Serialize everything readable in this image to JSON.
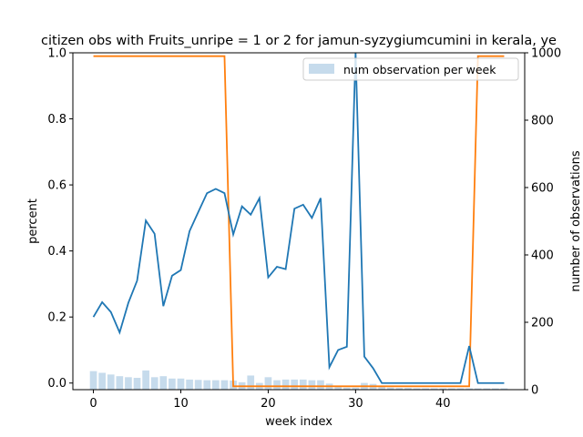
{
  "chart_data": {
    "type": "line",
    "title": "citizen obs with Fruits_unripe = 1 or 2 for jamun-syzygiumcumini in kerala, ye",
    "xlabel": "week index",
    "ylabel": "percent",
    "ylabel_right": "number of observations",
    "xlim": [
      -2.35,
      49.35
    ],
    "ylim": [
      -0.02,
      1.0
    ],
    "ylim_right": [
      0,
      1000
    ],
    "xticks": [
      0,
      10,
      20,
      30,
      40
    ],
    "yticks": [
      0.0,
      0.2,
      0.4,
      0.6,
      0.8,
      1.0
    ],
    "yticks_right": [
      0,
      200,
      400,
      600,
      800,
      1000
    ],
    "legend": {
      "label": "num observation per week",
      "position": "top-right"
    },
    "colors": {
      "percent": "#1f77b4",
      "threshold": "#ff7f0e",
      "bars": "#c6dbec"
    },
    "x": [
      0,
      1,
      2,
      3,
      4,
      5,
      6,
      7,
      8,
      9,
      10,
      11,
      12,
      13,
      14,
      15,
      16,
      17,
      18,
      19,
      20,
      21,
      22,
      23,
      24,
      25,
      26,
      27,
      28,
      29,
      30,
      31,
      32,
      33,
      34,
      35,
      36,
      37,
      38,
      39,
      40,
      41,
      42,
      43,
      44,
      45,
      46,
      47
    ],
    "series": [
      {
        "role": "percent",
        "axis": "left",
        "values": [
          0.2,
          0.245,
          0.215,
          0.153,
          0.243,
          0.31,
          0.492,
          0.452,
          0.233,
          0.325,
          0.342,
          0.46,
          0.518,
          0.575,
          0.588,
          0.575,
          0.45,
          0.535,
          0.51,
          0.56,
          0.32,
          0.352,
          0.345,
          0.528,
          0.54,
          0.5,
          0.56,
          0.048,
          0.1,
          0.11,
          1.0,
          0.08,
          0.045,
          0.0,
          0.0,
          0.0,
          0.0,
          0.0,
          0.0,
          0.0,
          0.0,
          0.0,
          0.0,
          0.112,
          0.0,
          0.0,
          0.0,
          0.0
        ]
      },
      {
        "role": "threshold",
        "axis": "right",
        "values": [
          990,
          990,
          990,
          990,
          990,
          990,
          990,
          990,
          990,
          990,
          990,
          990,
          990,
          990,
          990,
          990,
          10,
          10,
          10,
          10,
          10,
          10,
          10,
          10,
          10,
          10,
          10,
          10,
          10,
          10,
          10,
          10,
          10,
          10,
          10,
          10,
          10,
          10,
          10,
          10,
          10,
          10,
          10,
          10,
          990,
          990,
          990,
          990
        ]
      },
      {
        "role": "bars",
        "name": "num observation per week",
        "type": "bar",
        "axis": "right",
        "values": [
          55,
          50,
          45,
          40,
          37,
          35,
          57,
          37,
          40,
          33,
          33,
          30,
          29,
          28,
          28,
          28,
          27,
          22,
          42,
          20,
          37,
          28,
          30,
          30,
          30,
          28,
          28,
          18,
          8,
          6,
          6,
          20,
          17,
          8,
          6,
          5,
          5,
          4,
          4,
          4,
          4,
          4,
          4,
          4,
          4,
          4,
          4,
          4
        ]
      }
    ]
  }
}
